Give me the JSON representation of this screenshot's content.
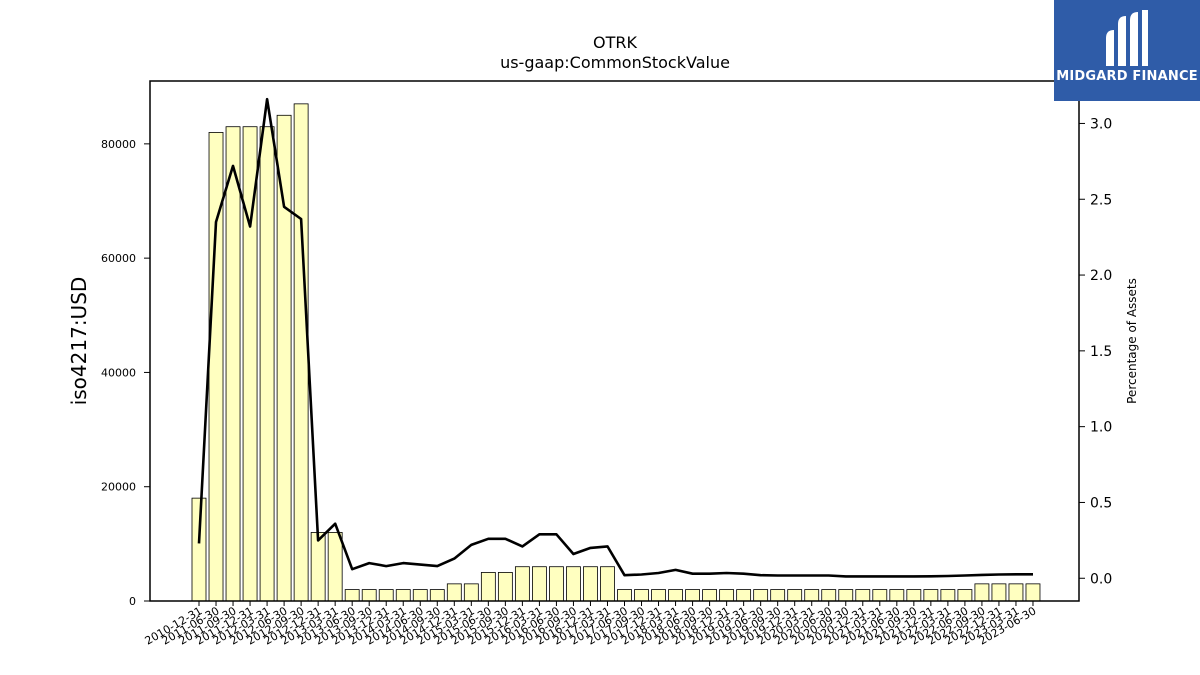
{
  "chart_data": {
    "type": "bar",
    "title": "OTRK",
    "subtitle": "us-gaap:CommonStockValue",
    "ylabel": "iso4217:USD",
    "y2label": "Percentage of Assets",
    "ylim": [
      0,
      91000
    ],
    "y2lim": [
      -0.15,
      3.28
    ],
    "yticks": [
      0,
      20000,
      40000,
      60000,
      80000
    ],
    "y2ticks": [
      "0.0",
      "0.5",
      "1.0",
      "1.5",
      "2.0",
      "2.5",
      "3.0"
    ],
    "bar_color": "#ffffc0",
    "line_color": "#000000",
    "categories": [
      "2010-12-31",
      "2011-06-30",
      "2011-09-30",
      "2011-12-31",
      "2012-03-31",
      "2012-06-30",
      "2012-09-30",
      "2012-12-31",
      "2013-03-31",
      "2013-06-30",
      "2013-09-30",
      "2013-12-31",
      "2014-03-31",
      "2014-06-30",
      "2014-09-30",
      "2014-12-31",
      "2015-03-31",
      "2015-06-30",
      "2015-09-30",
      "2015-12-31",
      "2016-03-31",
      "2016-06-30",
      "2016-09-30",
      "2016-12-31",
      "2017-03-31",
      "2017-06-30",
      "2017-09-30",
      "2017-12-31",
      "2018-03-31",
      "2018-06-30",
      "2018-09-30",
      "2018-12-31",
      "2019-03-31",
      "2019-06-30",
      "2019-09-30",
      "2019-12-31",
      "2020-03-31",
      "2020-06-30",
      "2020-09-30",
      "2020-12-31",
      "2021-03-31",
      "2021-06-30",
      "2021-09-30",
      "2021-12-31",
      "2022-03-31",
      "2022-06-30",
      "2022-09-30",
      "2022-12-31",
      "2023-03-31",
      "2023-06-30"
    ],
    "series": [
      {
        "type": "bar",
        "values": [
          18000,
          82000,
          83000,
          83000,
          83000,
          85000,
          87000,
          12000,
          12000,
          2000,
          2000,
          2000,
          2000,
          2000,
          2000,
          3000,
          3000,
          5000,
          5000,
          6000,
          6000,
          6000,
          6000,
          6000,
          6000,
          2000,
          2000,
          2000,
          2000,
          2000,
          2000,
          2000,
          2000,
          2000,
          2000,
          2000,
          2000,
          2000,
          2000,
          2000,
          2000,
          2000,
          2000,
          2000,
          2000,
          2000,
          3000,
          3000,
          3000,
          3000
        ]
      },
      {
        "type": "line",
        "axis": "right",
        "values": [
          0.23,
          2.35,
          2.72,
          2.32,
          3.16,
          2.45,
          2.37,
          0.25,
          0.36,
          0.06,
          0.1,
          0.08,
          0.1,
          0.09,
          0.08,
          0.13,
          0.22,
          0.26,
          0.26,
          0.21,
          0.29,
          0.29,
          0.16,
          0.2,
          0.21,
          0.02,
          0.025,
          0.035,
          0.055,
          0.03,
          0.03,
          0.035,
          0.03,
          0.02,
          0.018,
          0.018,
          0.018,
          0.018,
          0.012,
          0.012,
          0.012,
          0.012,
          0.012,
          0.013,
          0.015,
          0.018,
          0.022,
          0.025,
          0.026,
          0.026
        ]
      }
    ]
  },
  "logo": {
    "name": "MIDGARD FINANCE"
  }
}
